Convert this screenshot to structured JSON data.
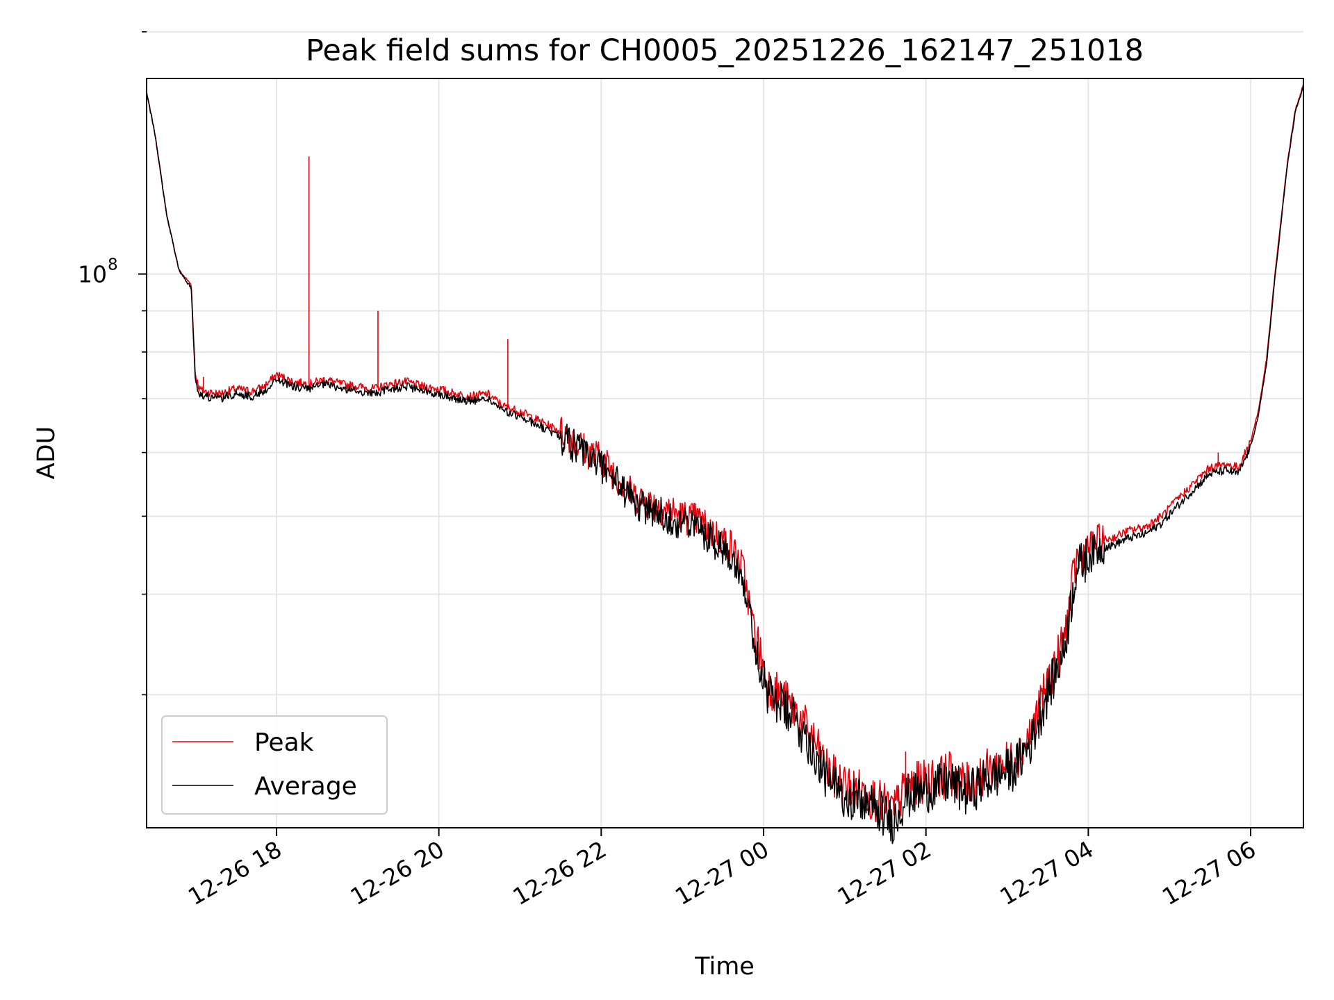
{
  "chart_data": {
    "type": "line",
    "title": "Peak field sums for CH0005_20251226_162147_251018",
    "xlabel": "Time",
    "ylabel": "ADU",
    "yscale": "log",
    "ylim": [
      20500000,
      175000000
    ],
    "xlim_hours": [
      16.4,
      30.65
    ],
    "x_unit": "hours since 12-26 00:00",
    "x_ticks": [
      {
        "label": "12-26 18",
        "value": 18
      },
      {
        "label": "12-26 20",
        "value": 20
      },
      {
        "label": "12-26 22",
        "value": 22
      },
      {
        "label": "12-27 00",
        "value": 24
      },
      {
        "label": "12-27 02",
        "value": 26
      },
      {
        "label": "12-27 04",
        "value": 28
      },
      {
        "label": "12-27 06",
        "value": 30
      }
    ],
    "y_major_tick": {
      "value": 100000000,
      "base": "10",
      "exponent": "8"
    },
    "y_minor_ticks": [
      30000000,
      40000000,
      50000000,
      60000000,
      70000000,
      80000000,
      90000000,
      200000000
    ],
    "grid": true,
    "legend_position": "lower-left",
    "series": [
      {
        "name": "Peak",
        "color": "#e8000b",
        "x": [
          16.4,
          16.5,
          16.65,
          16.8,
          16.95,
          17.0,
          17.05,
          17.1,
          17.3,
          17.5,
          17.7,
          17.85,
          18.0,
          18.2,
          18.4,
          18.6,
          18.8,
          19.0,
          19.2,
          19.4,
          19.6,
          19.8,
          20.0,
          20.2,
          20.4,
          20.6,
          20.8,
          21.0,
          21.2,
          21.4,
          21.6,
          21.8,
          22.0,
          22.2,
          22.4,
          22.6,
          22.8,
          23.0,
          23.2,
          23.4,
          23.6,
          23.75,
          23.85,
          23.95,
          24.05,
          24.2,
          24.4,
          24.6,
          24.8,
          25.0,
          25.2,
          25.4,
          25.6,
          25.75,
          25.9,
          26.1,
          26.3,
          26.5,
          26.7,
          26.9,
          27.1,
          27.3,
          27.5,
          27.7,
          27.85,
          27.95,
          28.1,
          28.3,
          28.5,
          28.7,
          28.9,
          29.1,
          29.3,
          29.5,
          29.7,
          29.85,
          30.0,
          30.1,
          30.2,
          30.3,
          30.45,
          30.55,
          30.65
        ],
        "y": [
          168000000,
          150000000,
          118000000,
          101000000,
          97000000,
          75000000,
          72000000,
          71500000,
          71000000,
          72000000,
          71500000,
          72500000,
          75000000,
          73500000,
          73000000,
          74000000,
          73000000,
          72500000,
          72000000,
          73000000,
          73500000,
          72500000,
          72000000,
          71000000,
          70500000,
          71000000,
          68500000,
          67500000,
          66000000,
          64500000,
          63000000,
          60500000,
          59000000,
          56000000,
          53000000,
          52000000,
          51000000,
          50000000,
          49500000,
          47500000,
          46000000,
          43000000,
          37500000,
          34000000,
          31000000,
          30000000,
          28500000,
          26500000,
          24000000,
          23200000,
          22800000,
          22200000,
          21500000,
          23000000,
          23300000,
          23600000,
          24000000,
          23200000,
          24000000,
          24500000,
          25000000,
          27000000,
          31000000,
          35000000,
          44000000,
          45000000,
          46500000,
          47000000,
          48000000,
          48500000,
          50000000,
          52500000,
          55000000,
          57500000,
          58000000,
          57500000,
          62000000,
          68000000,
          79000000,
          100000000,
          137000000,
          160000000,
          172000000
        ]
      },
      {
        "name": "Average",
        "color": "#000000",
        "x": [
          16.4,
          16.5,
          16.65,
          16.8,
          16.95,
          17.0,
          17.05,
          17.1,
          17.3,
          17.5,
          17.7,
          17.85,
          18.0,
          18.2,
          18.4,
          18.6,
          18.8,
          19.0,
          19.2,
          19.4,
          19.6,
          19.8,
          20.0,
          20.2,
          20.4,
          20.6,
          20.8,
          21.0,
          21.2,
          21.4,
          21.6,
          21.8,
          22.0,
          22.2,
          22.4,
          22.6,
          22.8,
          23.0,
          23.2,
          23.4,
          23.6,
          23.75,
          23.85,
          23.95,
          24.05,
          24.2,
          24.4,
          24.6,
          24.8,
          25.0,
          25.2,
          25.4,
          25.6,
          25.75,
          25.9,
          26.1,
          26.3,
          26.5,
          26.7,
          26.9,
          27.1,
          27.3,
          27.5,
          27.7,
          27.85,
          27.95,
          28.1,
          28.3,
          28.5,
          28.7,
          28.9,
          29.1,
          29.3,
          29.5,
          29.7,
          29.85,
          30.0,
          30.1,
          30.2,
          30.3,
          30.45,
          30.55,
          30.65
        ],
        "y": [
          168000000,
          150000000,
          118000000,
          101000000,
          96000000,
          74000000,
          71000000,
          70500000,
          70000000,
          71000000,
          70500000,
          71500000,
          74000000,
          72500000,
          72000000,
          73000000,
          72000000,
          71500000,
          71000000,
          72000000,
          72500000,
          71500000,
          71000000,
          70000000,
          69500000,
          70000000,
          67500000,
          66500000,
          65000000,
          63500000,
          62000000,
          59500000,
          58000000,
          55000000,
          52000000,
          51000000,
          50000000,
          49000000,
          48500000,
          46500000,
          45000000,
          42000000,
          36500000,
          33000000,
          30000000,
          29200000,
          27800000,
          25800000,
          23300000,
          22600000,
          22200000,
          21600000,
          20900000,
          22400000,
          22700000,
          23000000,
          23400000,
          22600000,
          23400000,
          23900000,
          24400000,
          26300000,
          30200000,
          34000000,
          43000000,
          44000000,
          45500000,
          46000000,
          47000000,
          47500000,
          49000000,
          51500000,
          54000000,
          56500000,
          57000000,
          56500000,
          61000000,
          67000000,
          78000000,
          99000000,
          136000000,
          159000000,
          171000000
        ]
      }
    ],
    "annotations": [
      {
        "series": "Peak",
        "x": 18.4,
        "y": 140000000,
        "note": "spike"
      },
      {
        "series": "Peak",
        "x": 19.25,
        "y": 90000000,
        "note": "spike"
      },
      {
        "series": "Peak",
        "x": 20.85,
        "y": 83000000,
        "note": "spike"
      },
      {
        "series": "Peak",
        "x": 17.1,
        "y": 74500000,
        "note": "spike"
      },
      {
        "series": "Peak",
        "x": 25.75,
        "y": 25500000,
        "note": "spike"
      },
      {
        "series": "Peak",
        "x": 29.6,
        "y": 60000000,
        "note": "spike"
      }
    ]
  }
}
